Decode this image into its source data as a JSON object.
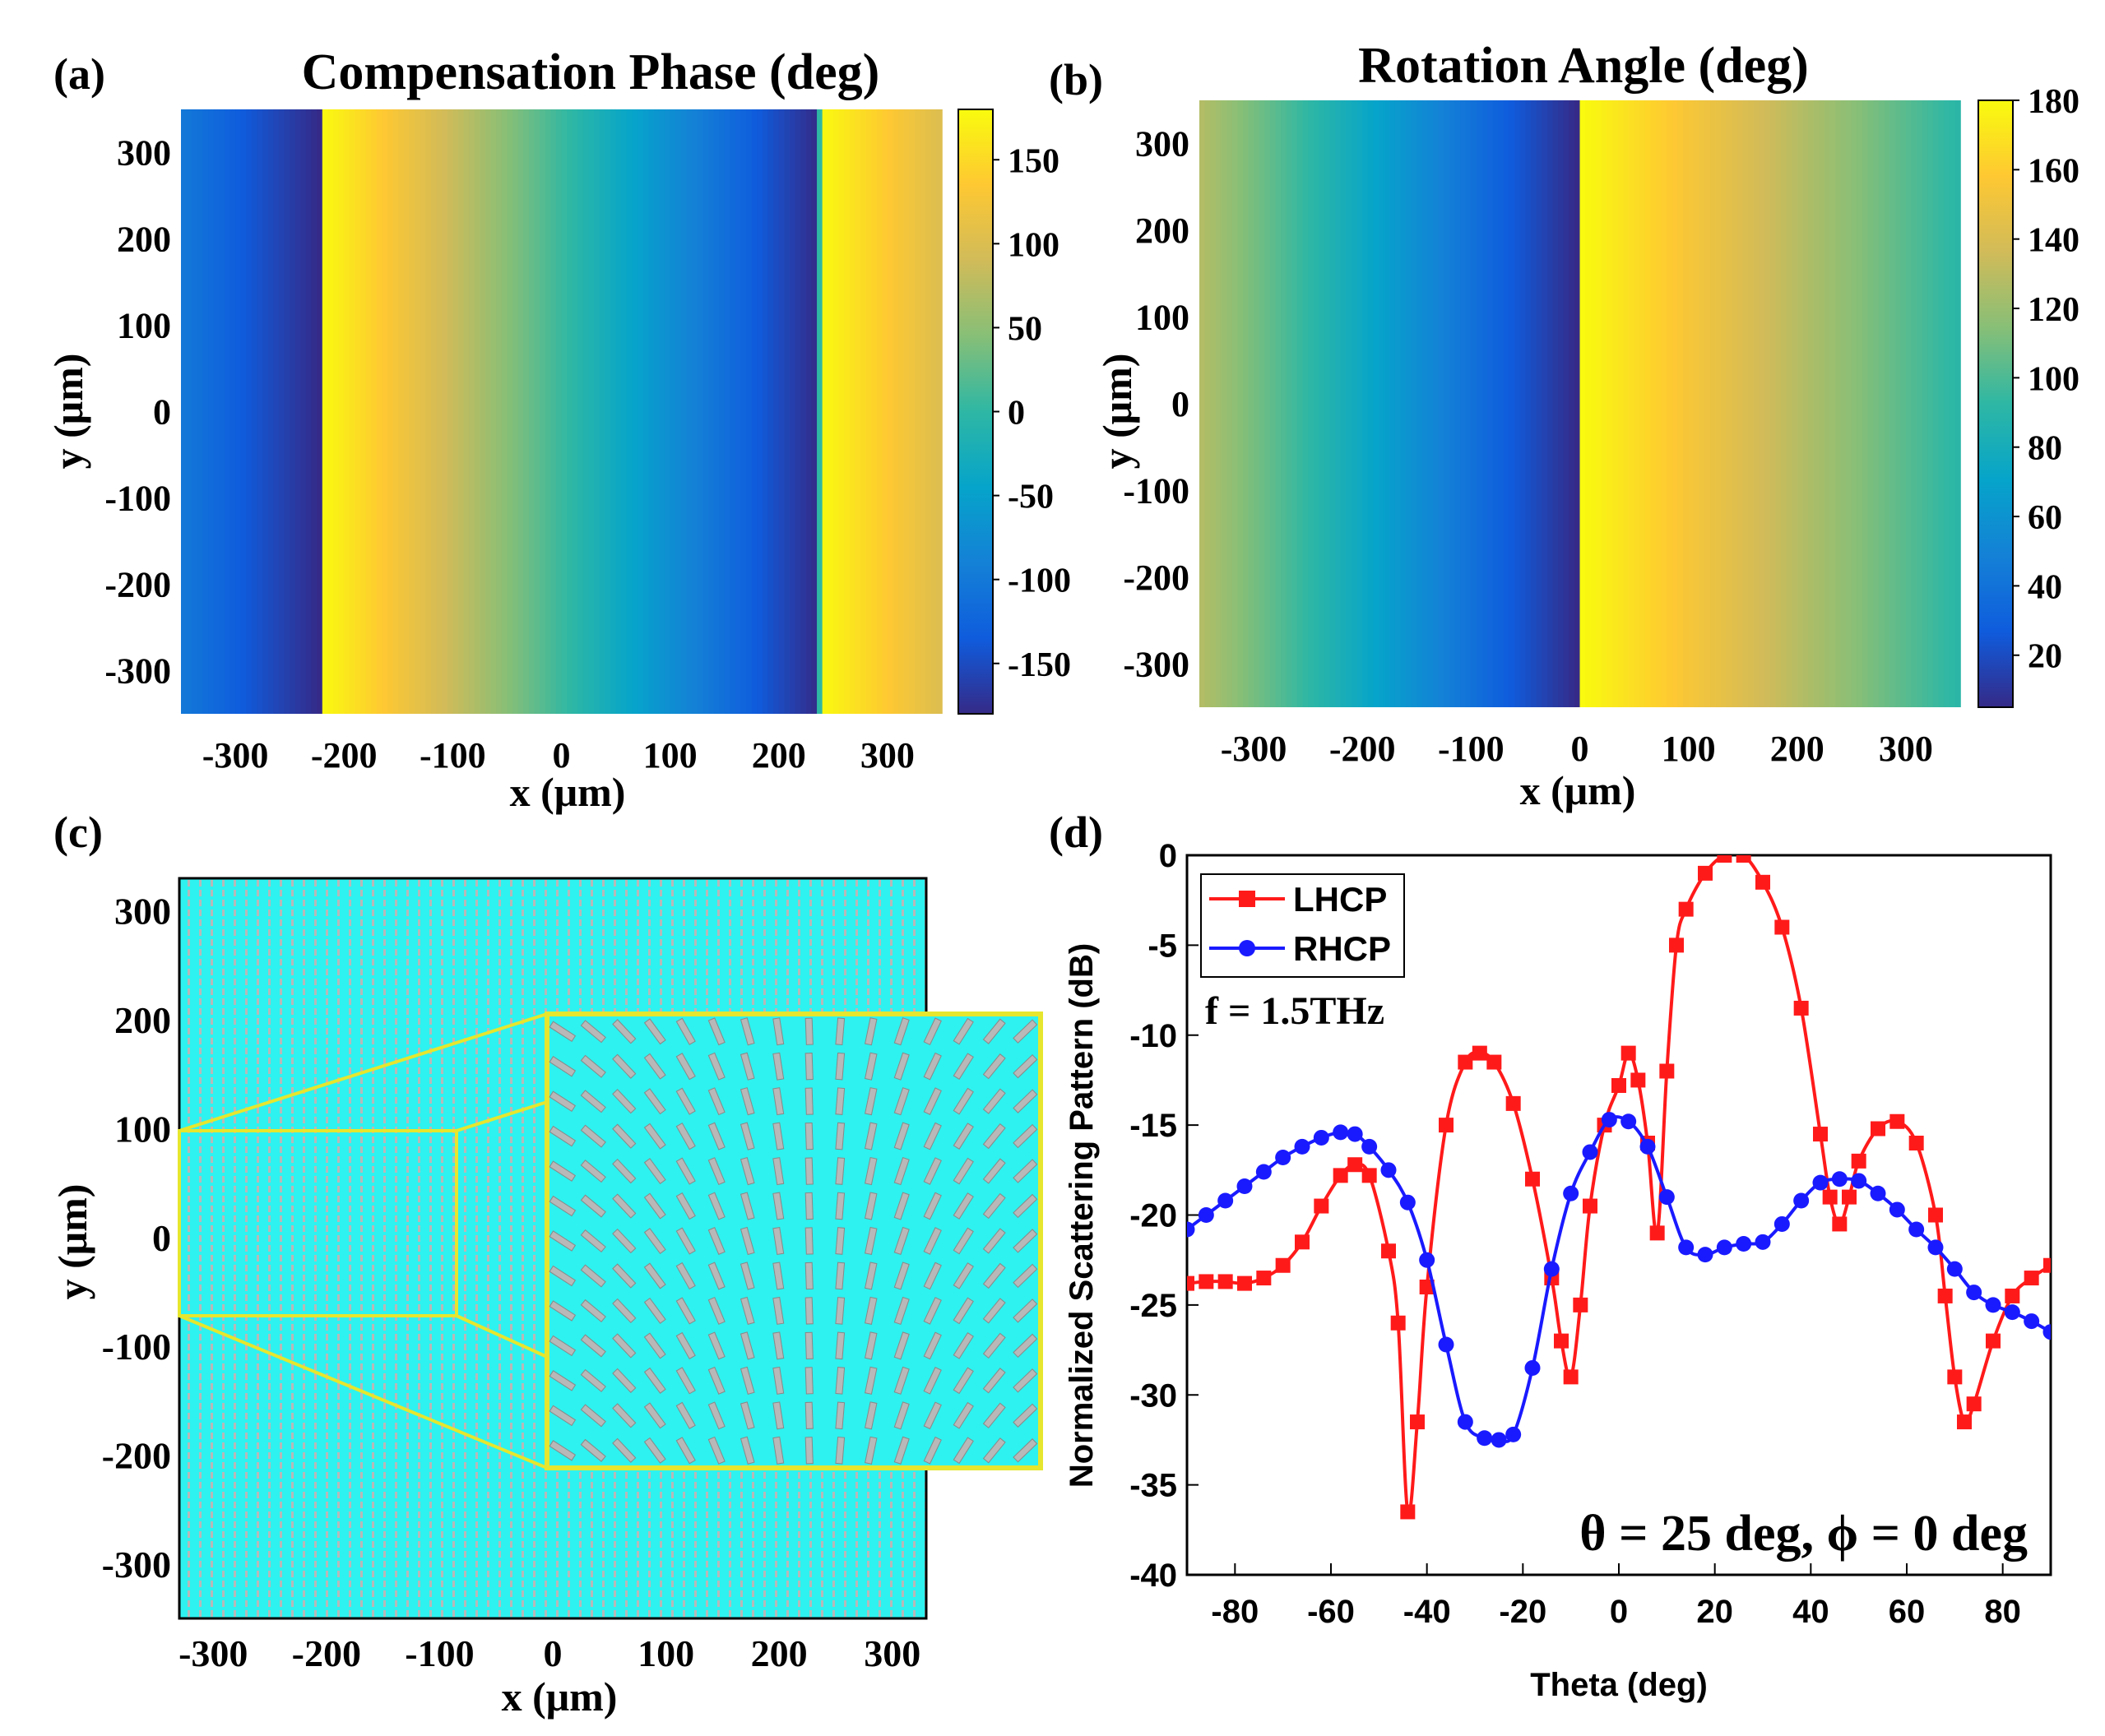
{
  "colors": {
    "parula": [
      "#352a87",
      "#0f5cdd",
      "#1481d6",
      "#06a4ca",
      "#2eb7a4",
      "#87bf77",
      "#d1bb59",
      "#fec832",
      "#f9fb0e"
    ],
    "lhcp": "#ff1a1a",
    "rhcp": "#1a1aff",
    "metasurface_bg": "#2ef2ef",
    "element": "#b8b8b8",
    "highlight": "#e6e62e"
  },
  "chart_data": [
    {
      "id": "a",
      "panel_label": "(a)",
      "type": "heatmap",
      "title": "Compensation Phase (deg)",
      "xlabel": "x (μm)",
      "ylabel": "y (μm)",
      "xlim": [
        -350,
        350
      ],
      "ylim": [
        -350,
        350
      ],
      "x_ticks": [
        "-300",
        "-200",
        "-100",
        "0",
        "100",
        "200",
        "300"
      ],
      "y_ticks": [
        "300",
        "200",
        "100",
        "0",
        "-100",
        "-200",
        "-300"
      ],
      "colorbar": {
        "min": -180,
        "max": 180,
        "ticks": [
          "150",
          "100",
          "50",
          "0",
          "-50",
          "-100",
          "-150"
        ]
      },
      "profile_x": [
        -350,
        -222,
        -221,
        237,
        238,
        350
      ],
      "profile_values": [
        -100,
        -180,
        180,
        -180,
        180,
        100
      ]
    },
    {
      "id": "b",
      "panel_label": "(b)",
      "type": "heatmap",
      "title": "Rotation Angle (deg)",
      "xlabel": "x (μm)",
      "ylabel": "y (μm)",
      "xlim": [
        -350,
        350
      ],
      "ylim": [
        -350,
        350
      ],
      "x_ticks": [
        "-300",
        "-200",
        "-100",
        "0",
        "100",
        "200",
        "300"
      ],
      "y_ticks": [
        "300",
        "200",
        "100",
        "0",
        "-100",
        "-200",
        "-300"
      ],
      "colorbar": {
        "min": 5,
        "max": 180,
        "ticks": [
          "180",
          "160",
          "140",
          "120",
          "100",
          "80",
          "60",
          "40",
          "20"
        ]
      },
      "profile_x": [
        -350,
        -2,
        0,
        350
      ],
      "profile_values": [
        128,
        5,
        180,
        90
      ]
    },
    {
      "id": "c",
      "panel_label": "(c)",
      "type": "layout",
      "xlabel": "x (μm)",
      "ylabel": "y (μm)",
      "xlim": [
        -330,
        330
      ],
      "ylim": [
        -350,
        330
      ],
      "x_ticks": [
        "-300",
        "-200",
        "-100",
        "0",
        "100",
        "200",
        "300"
      ],
      "y_ticks": [
        "300",
        "200",
        "100",
        "0",
        "-100",
        "-200",
        "-300"
      ]
    },
    {
      "id": "d",
      "panel_label": "(d)",
      "type": "line",
      "xlabel": "Theta (deg)",
      "ylabel": "Normalized Scattering Pattern (dB)",
      "xlim": [
        -90,
        90
      ],
      "ylim": [
        -40,
        0
      ],
      "x_ticks": [
        "-80",
        "-60",
        "-40",
        "-20",
        "0",
        "20",
        "40",
        "60",
        "80"
      ],
      "y_ticks": [
        "0",
        "-5",
        "-10",
        "-15",
        "-20",
        "-25",
        "-30",
        "-35",
        "-40"
      ],
      "annotation_freq": "f = 1.5THz",
      "annotation_angle": "θ  = 25 deg, ϕ  = 0 deg",
      "series": [
        {
          "name": "LHCP",
          "marker": "square",
          "x": [
            -90,
            -86,
            -82,
            -78,
            -74,
            -70,
            -66,
            -62,
            -58,
            -55,
            -52,
            -48,
            -46,
            -44,
            -42,
            -40,
            -36,
            -32,
            -29,
            -26,
            -22,
            -18,
            -14,
            -12,
            -10,
            -8,
            -6,
            -3,
            0,
            2,
            4,
            6,
            8,
            10,
            12,
            14,
            18,
            22,
            26,
            30,
            34,
            38,
            42,
            44,
            46,
            48,
            50,
            54,
            58,
            62,
            66,
            68,
            70,
            72,
            74,
            78,
            82,
            86,
            90
          ],
          "y": [
            -23.8,
            -23.7,
            -23.7,
            -23.8,
            -23.5,
            -22.8,
            -21.5,
            -19.5,
            -17.8,
            -17.2,
            -17.8,
            -22,
            -26,
            -36.5,
            -31.5,
            -24,
            -15,
            -11.5,
            -11,
            -11.5,
            -13.8,
            -18,
            -23.5,
            -27,
            -29,
            -25,
            -19.5,
            -15,
            -12.8,
            -11,
            -12.5,
            -16,
            -21,
            -12,
            -5,
            -3,
            -1,
            0,
            0,
            -1.5,
            -4,
            -8.5,
            -15.5,
            -19,
            -20.5,
            -19,
            -17,
            -15.2,
            -14.8,
            -16,
            -20,
            -24.5,
            -29,
            -31.5,
            -30.5,
            -27,
            -24.5,
            -23.5,
            -22.8
          ]
        },
        {
          "name": "RHCP",
          "marker": "circle",
          "x": [
            -90,
            -86,
            -82,
            -78,
            -74,
            -70,
            -66,
            -62,
            -58,
            -55,
            -52,
            -48,
            -44,
            -40,
            -36,
            -32,
            -28,
            -25,
            -22,
            -18,
            -14,
            -10,
            -6,
            -2,
            2,
            6,
            10,
            14,
            18,
            22,
            26,
            30,
            34,
            38,
            42,
            46,
            50,
            54,
            58,
            62,
            66,
            70,
            74,
            78,
            82,
            86,
            90
          ],
          "y": [
            -20.8,
            -20,
            -19.2,
            -18.4,
            -17.6,
            -16.8,
            -16.2,
            -15.7,
            -15.4,
            -15.5,
            -16.2,
            -17.5,
            -19.3,
            -22.5,
            -27.2,
            -31.5,
            -32.4,
            -32.5,
            -32.2,
            -28.5,
            -23,
            -18.8,
            -16.5,
            -14.7,
            -14.8,
            -16.2,
            -19,
            -21.8,
            -22.2,
            -21.8,
            -21.6,
            -21.5,
            -20.5,
            -19.2,
            -18.2,
            -18,
            -18.1,
            -18.8,
            -19.7,
            -20.8,
            -21.8,
            -23,
            -24.3,
            -25,
            -25.4,
            -25.9,
            -26.5
          ]
        }
      ]
    }
  ]
}
